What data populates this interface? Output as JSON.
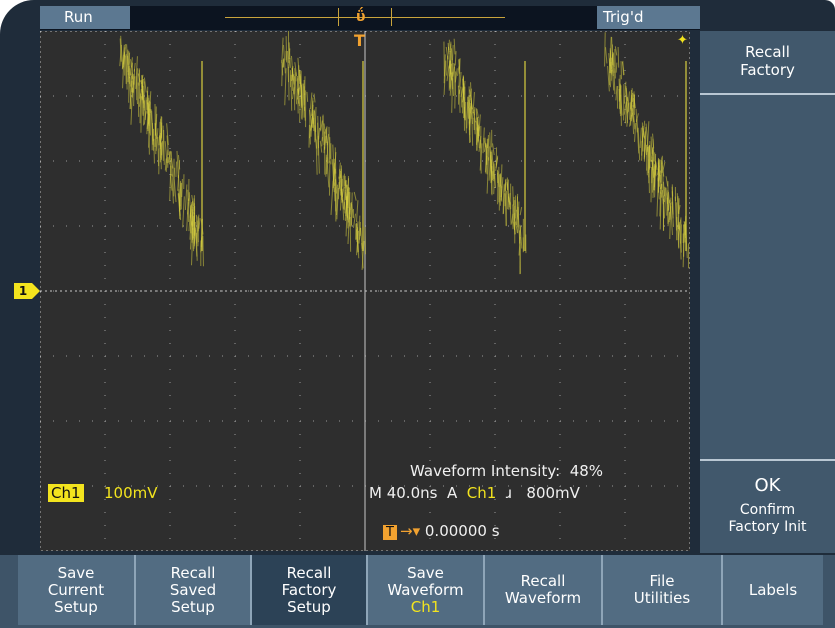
{
  "status": {
    "acquisition": "Run",
    "trigger_state": "Trig'd"
  },
  "markers": {
    "channel_marker": "1",
    "trigger_position_marker": "T"
  },
  "side_menu": {
    "top_button": {
      "line1": "Recall",
      "line2": "Factory"
    },
    "ok_button": {
      "label": "OK",
      "line1": "Confirm",
      "line2": "Factory Init"
    }
  },
  "bottom_menu": [
    {
      "line1": "Save",
      "line2": "Current",
      "line3": "Setup"
    },
    {
      "line1": "Recall",
      "line2": "Saved",
      "line3": "Setup"
    },
    {
      "line1": "Recall",
      "line2": "Factory",
      "line3": "Setup"
    },
    {
      "line1": "Save",
      "line2": "Waveform",
      "line3": "Ch1"
    },
    {
      "line1": "Recall",
      "line2": "Waveform",
      "line3": ""
    },
    {
      "line1": "File",
      "line2": "Utilities",
      "line3": ""
    },
    {
      "line1": "Labels",
      "line2": "",
      "line3": ""
    }
  ],
  "readouts": {
    "channel": "Ch1",
    "volts_per_div": "100mV",
    "intensity_label": "Waveform Intensity:",
    "intensity_value": "48%",
    "timebase": "M 40.0ns",
    "trigger_source_prefix": "A",
    "trigger_source": "Ch1",
    "trigger_slope_icon": "rising-edge-icon",
    "trigger_level": "800mV",
    "trigger_position": "0.00000 s"
  },
  "colors": {
    "waveform": "#d8d040",
    "channel": "#f3e41e",
    "trigger": "#f2a230",
    "screen_bg": "#2e2e2e",
    "bezel": "#1f2c3a"
  }
}
